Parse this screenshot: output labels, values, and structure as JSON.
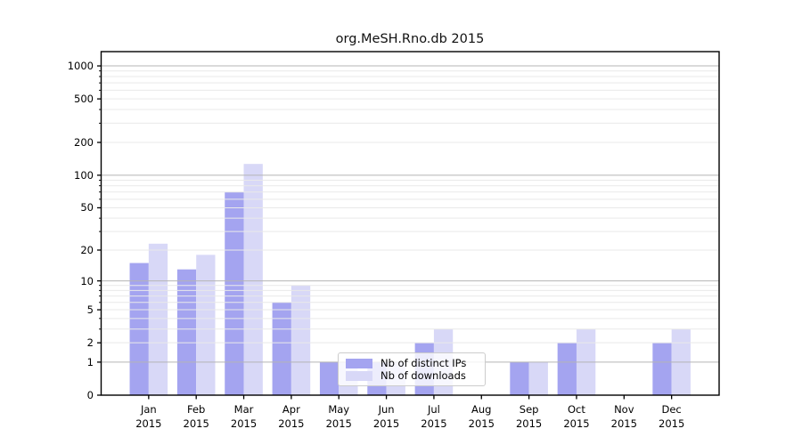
{
  "window": {
    "title": "org.MeSH.Rno.db 2015"
  },
  "chart_data": {
    "type": "bar",
    "title": "org.MeSH.Rno.db 2015",
    "categories": [
      "Jan 2015",
      "Feb 2015",
      "Mar 2015",
      "Apr 2015",
      "May 2015",
      "Jun 2015",
      "Jul 2015",
      "Aug 2015",
      "Sep 2015",
      "Oct 2015",
      "Nov 2015",
      "Dec 2015"
    ],
    "series": [
      {
        "name": "Nb of distinct IPs",
        "color": "#a4a4f0",
        "values": [
          15,
          13,
          70,
          6,
          1,
          1,
          2,
          0,
          1,
          2,
          0,
          2
        ]
      },
      {
        "name": "Nb of downloads",
        "color": "#d8d8f7",
        "values": [
          23,
          18,
          127,
          9,
          1,
          1,
          3,
          0,
          1,
          3,
          0,
          3
        ]
      }
    ],
    "xlabel": "",
    "ylabel": "",
    "yscale": "log1p",
    "ylim": [
      0,
      1350
    ],
    "yticks": [
      0,
      1,
      2,
      5,
      10,
      20,
      50,
      100,
      200,
      500,
      1000
    ],
    "major_gridlines": [
      1,
      10,
      100,
      1000
    ],
    "minor_gridlines": [
      2,
      3,
      4,
      5,
      6,
      7,
      8,
      9,
      20,
      30,
      40,
      50,
      60,
      70,
      80,
      90,
      200,
      300,
      400,
      500,
      600,
      700,
      800,
      900
    ],
    "grid": true,
    "legend_position": "lower center-left"
  },
  "legend": {
    "items": [
      {
        "label": "Nb of distinct IPs"
      },
      {
        "label": "Nb of downloads"
      }
    ]
  },
  "colors": {
    "bar_distinct_ips": "#a4a4f0",
    "bar_downloads": "#d8d8f7",
    "grid_major": "#b5b5b5",
    "grid_minor": "#e9e9e9",
    "axis": "#000000",
    "legend_border": "#cccccc",
    "background": "#ffffff"
  }
}
